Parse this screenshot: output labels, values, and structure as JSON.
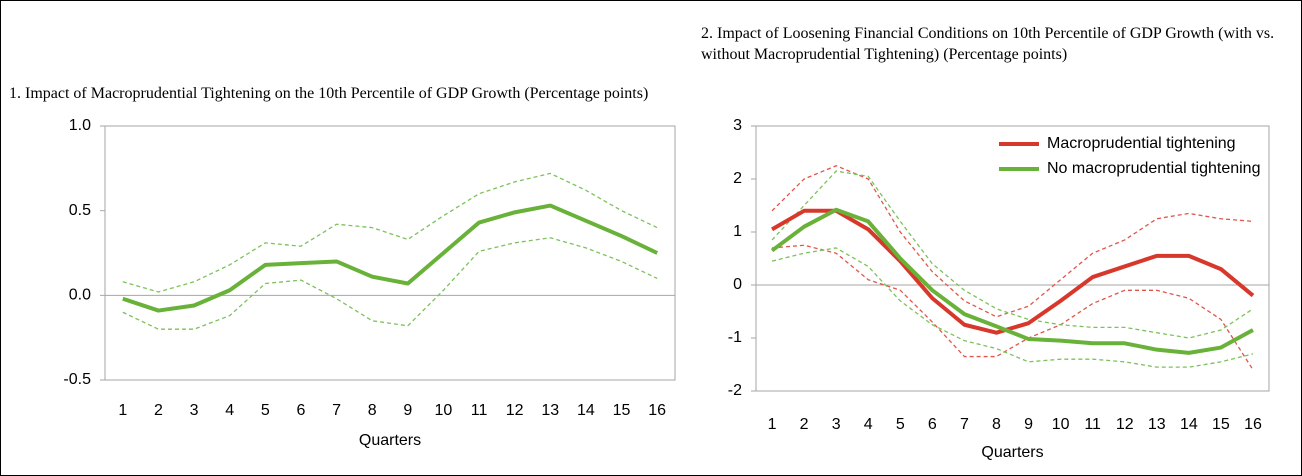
{
  "chart_data": [
    {
      "type": "line",
      "title": "1. Impact of Macroprudential Tightening on the 10th Percentile of GDP Growth (Percentage points)",
      "xlabel": "Quarters",
      "categories": [
        "1",
        "2",
        "3",
        "4",
        "5",
        "6",
        "7",
        "8",
        "9",
        "10",
        "11",
        "12",
        "13",
        "14",
        "15",
        "16"
      ],
      "ylim": [
        -0.5,
        1
      ],
      "yticks": [
        -0.5,
        {
          "value": 0,
          "label": "0.0"
        },
        0.5,
        {
          "value": 1,
          "label": "1.0"
        }
      ],
      "series": [
        {
          "color": "#69b23a",
          "style": "solid",
          "values": [
            -0.02,
            -0.09,
            -0.06,
            0.03,
            0.18,
            0.19,
            0.2,
            0.11,
            0.07,
            0.25,
            0.43,
            0.49,
            0.53,
            0.44,
            0.35,
            0.25
          ]
        },
        {
          "color": "#7cc25a",
          "style": "dashed",
          "values": [
            0.08,
            0.02,
            0.08,
            0.18,
            0.31,
            0.29,
            0.42,
            0.4,
            0.33,
            0.47,
            0.6,
            0.67,
            0.72,
            0.62,
            0.5,
            0.4
          ]
        },
        {
          "color": "#7cc25a",
          "style": "dashed",
          "values": [
            -0.1,
            -0.2,
            -0.2,
            -0.12,
            0.07,
            0.09,
            -0.02,
            -0.15,
            -0.18,
            0.03,
            0.26,
            0.31,
            0.34,
            0.28,
            0.2,
            0.1
          ]
        }
      ]
    },
    {
      "type": "line",
      "title": "2. Impact of Loosening Financial Conditions on 10th Percentile of GDP Growth (with vs. without Macroprudential Tightening) (Percentage points)",
      "xlabel": "Quarters",
      "categories": [
        "1",
        "2",
        "3",
        "4",
        "5",
        "6",
        "7",
        "8",
        "9",
        "10",
        "11",
        "12",
        "13",
        "14",
        "15",
        "16"
      ],
      "ylim": [
        -2,
        3
      ],
      "yticks": [
        -2,
        -1,
        0,
        1,
        2,
        3
      ],
      "legend": "upper right",
      "series": [
        {
          "name": "Macroprudential tightening",
          "color": "#d8382b",
          "style": "solid",
          "values": [
            1.05,
            1.4,
            1.4,
            1.05,
            0.45,
            -0.25,
            -0.75,
            -0.9,
            -0.72,
            -0.3,
            0.15,
            0.35,
            0.55,
            0.55,
            0.3,
            -0.2
          ]
        },
        {
          "name": "No macroprudential tightening",
          "color": "#69b23a",
          "style": "solid",
          "values": [
            0.65,
            1.1,
            1.42,
            1.2,
            0.5,
            -0.1,
            -0.55,
            -0.78,
            -1.02,
            -1.05,
            -1.1,
            -1.1,
            -1.22,
            -1.28,
            -1.18,
            -0.85
          ]
        },
        {
          "color": "#e0564a",
          "style": "dashed",
          "values": [
            1.4,
            2.0,
            2.25,
            2.0,
            1.0,
            0.25,
            -0.3,
            -0.6,
            -0.4,
            0.1,
            0.6,
            0.85,
            1.25,
            1.35,
            1.25,
            1.2
          ]
        },
        {
          "color": "#e0564a",
          "style": "dashed",
          "values": [
            0.7,
            0.75,
            0.6,
            0.1,
            -0.1,
            -0.7,
            -1.35,
            -1.35,
            -1.0,
            -0.75,
            -0.35,
            -0.1,
            -0.1,
            -0.25,
            -0.65,
            -1.6
          ]
        },
        {
          "color": "#7cc25a",
          "style": "dashed",
          "values": [
            0.85,
            1.5,
            2.15,
            2.05,
            1.2,
            0.4,
            -0.1,
            -0.45,
            -0.65,
            -0.75,
            -0.8,
            -0.8,
            -0.9,
            -1.0,
            -0.85,
            -0.45
          ]
        },
        {
          "color": "#7cc25a",
          "style": "dashed",
          "values": [
            0.45,
            0.6,
            0.7,
            0.35,
            -0.3,
            -0.75,
            -1.05,
            -1.2,
            -1.45,
            -1.4,
            -1.4,
            -1.45,
            -1.55,
            -1.55,
            -1.45,
            -1.3
          ]
        }
      ]
    }
  ]
}
